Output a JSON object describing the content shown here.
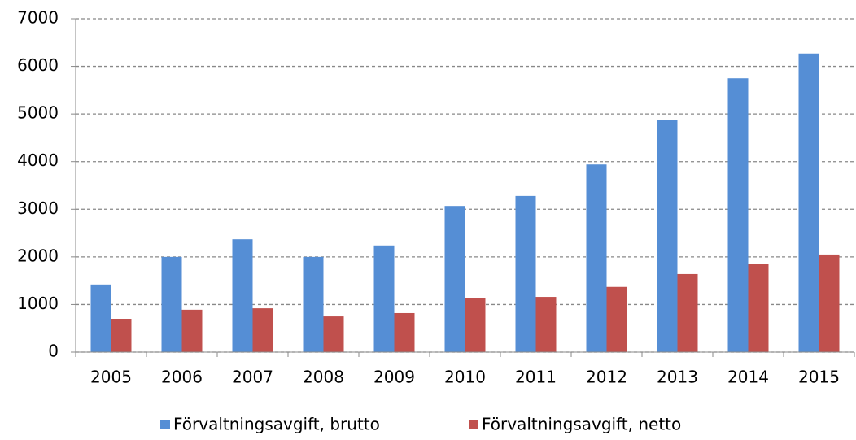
{
  "chart_data": {
    "type": "bar",
    "categories": [
      "2005",
      "2006",
      "2007",
      "2008",
      "2009",
      "2010",
      "2011",
      "2012",
      "2013",
      "2014",
      "2015"
    ],
    "series": [
      {
        "name": "Förvaltningsavgift, brutto",
        "color": "#558ed5",
        "values": [
          1420,
          2000,
          2370,
          2000,
          2240,
          3070,
          3280,
          3940,
          4870,
          5750,
          6270
        ]
      },
      {
        "name": "Förvaltningsavgift, netto",
        "color": "#c0504d",
        "values": [
          700,
          890,
          920,
          750,
          820,
          1140,
          1160,
          1370,
          1640,
          1860,
          2050
        ]
      }
    ],
    "ylim": [
      0,
      7000
    ],
    "yticks": [
      0,
      1000,
      2000,
      3000,
      4000,
      5000,
      6000,
      7000
    ],
    "grid": true,
    "legend": "bottom"
  }
}
